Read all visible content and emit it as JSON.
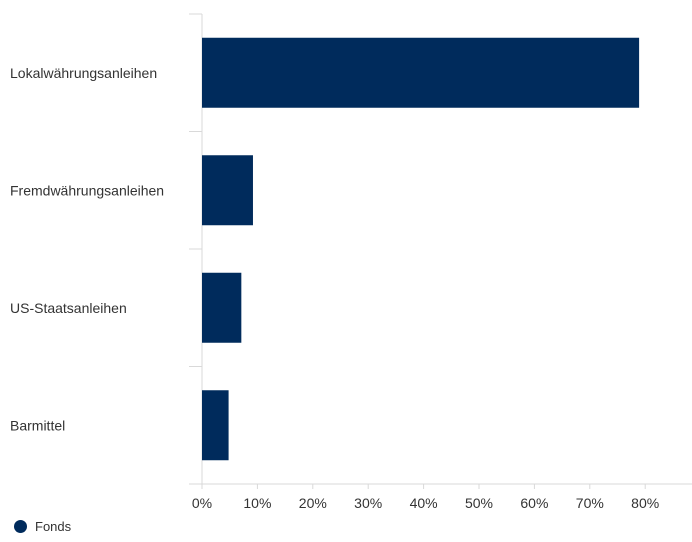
{
  "chart_data": {
    "type": "bar",
    "orientation": "horizontal",
    "categories": [
      "Lokalwährungsanleihen",
      "Fremdwährungsanleihen",
      "US-Staatsanleihen",
      "Barmittel"
    ],
    "series": [
      {
        "name": "Fonds",
        "values": [
          78.9,
          9.2,
          7.1,
          4.8
        ],
        "color": "#002b5c"
      }
    ],
    "xlim": [
      0,
      80
    ],
    "xticks": [
      "0%",
      "10%",
      "20%",
      "30%",
      "40%",
      "50%",
      "60%",
      "70%",
      "80%"
    ],
    "grid": false,
    "legend_position": "bottom-left"
  },
  "colors": {
    "bar": "#002b5c",
    "axis": "#d9d9d9",
    "text": "#333333"
  }
}
